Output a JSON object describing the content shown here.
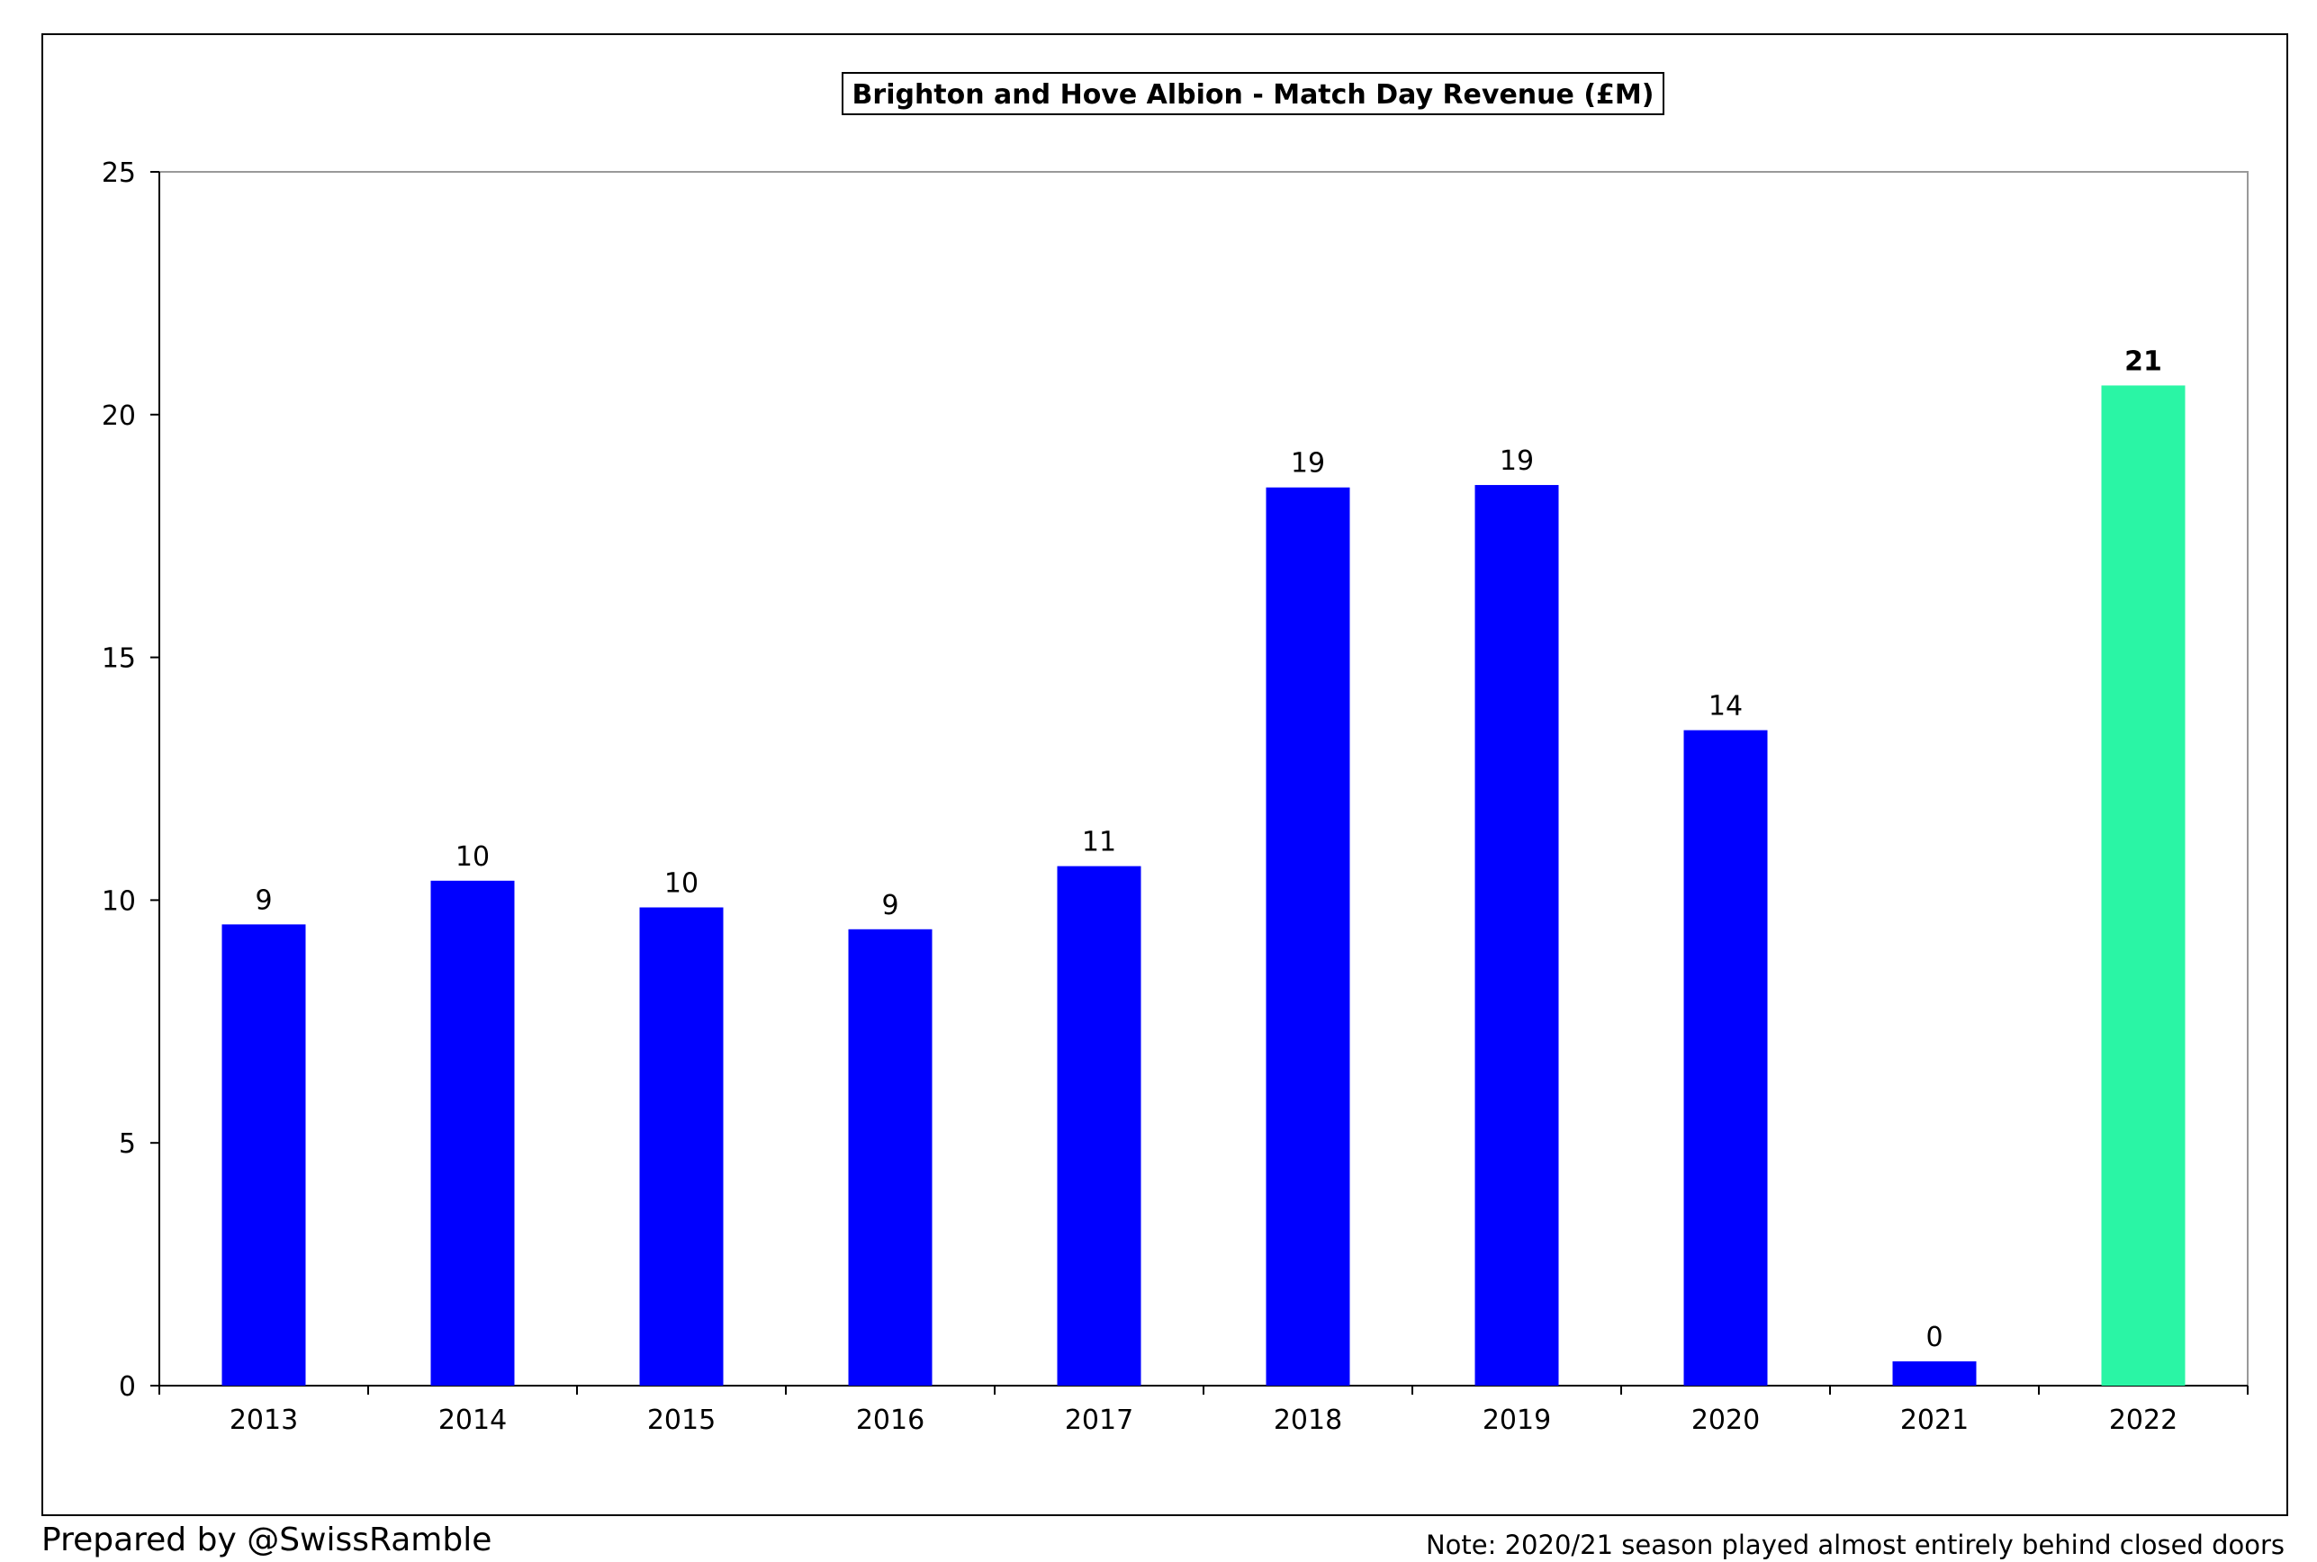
{
  "chart_data": {
    "type": "bar",
    "title": "Brighton and Hove Albion - Match Day Revenue (£M)",
    "categories": [
      "2013",
      "2014",
      "2015",
      "2016",
      "2017",
      "2018",
      "2019",
      "2020",
      "2021",
      "2022"
    ],
    "values": [
      9.5,
      10.4,
      9.85,
      9.4,
      10.7,
      18.5,
      18.55,
      13.5,
      0.5,
      20.6
    ],
    "data_labels": [
      "9",
      "10",
      "10",
      "9",
      "11",
      "19",
      "19",
      "14",
      "0",
      "21"
    ],
    "highlight_index": 9,
    "ylim": [
      0,
      25
    ],
    "yticks": [
      0,
      5,
      10,
      15,
      20,
      25
    ],
    "xlabel": "",
    "ylabel": "",
    "grid": false,
    "legend": "none",
    "colors": {
      "bar": "#0000ff",
      "highlight": "#2af5a5"
    }
  },
  "footer": {
    "credit": "Prepared by @SwissRamble",
    "note": "Note: 2020/21 season played almost entirely behind closed doors"
  }
}
